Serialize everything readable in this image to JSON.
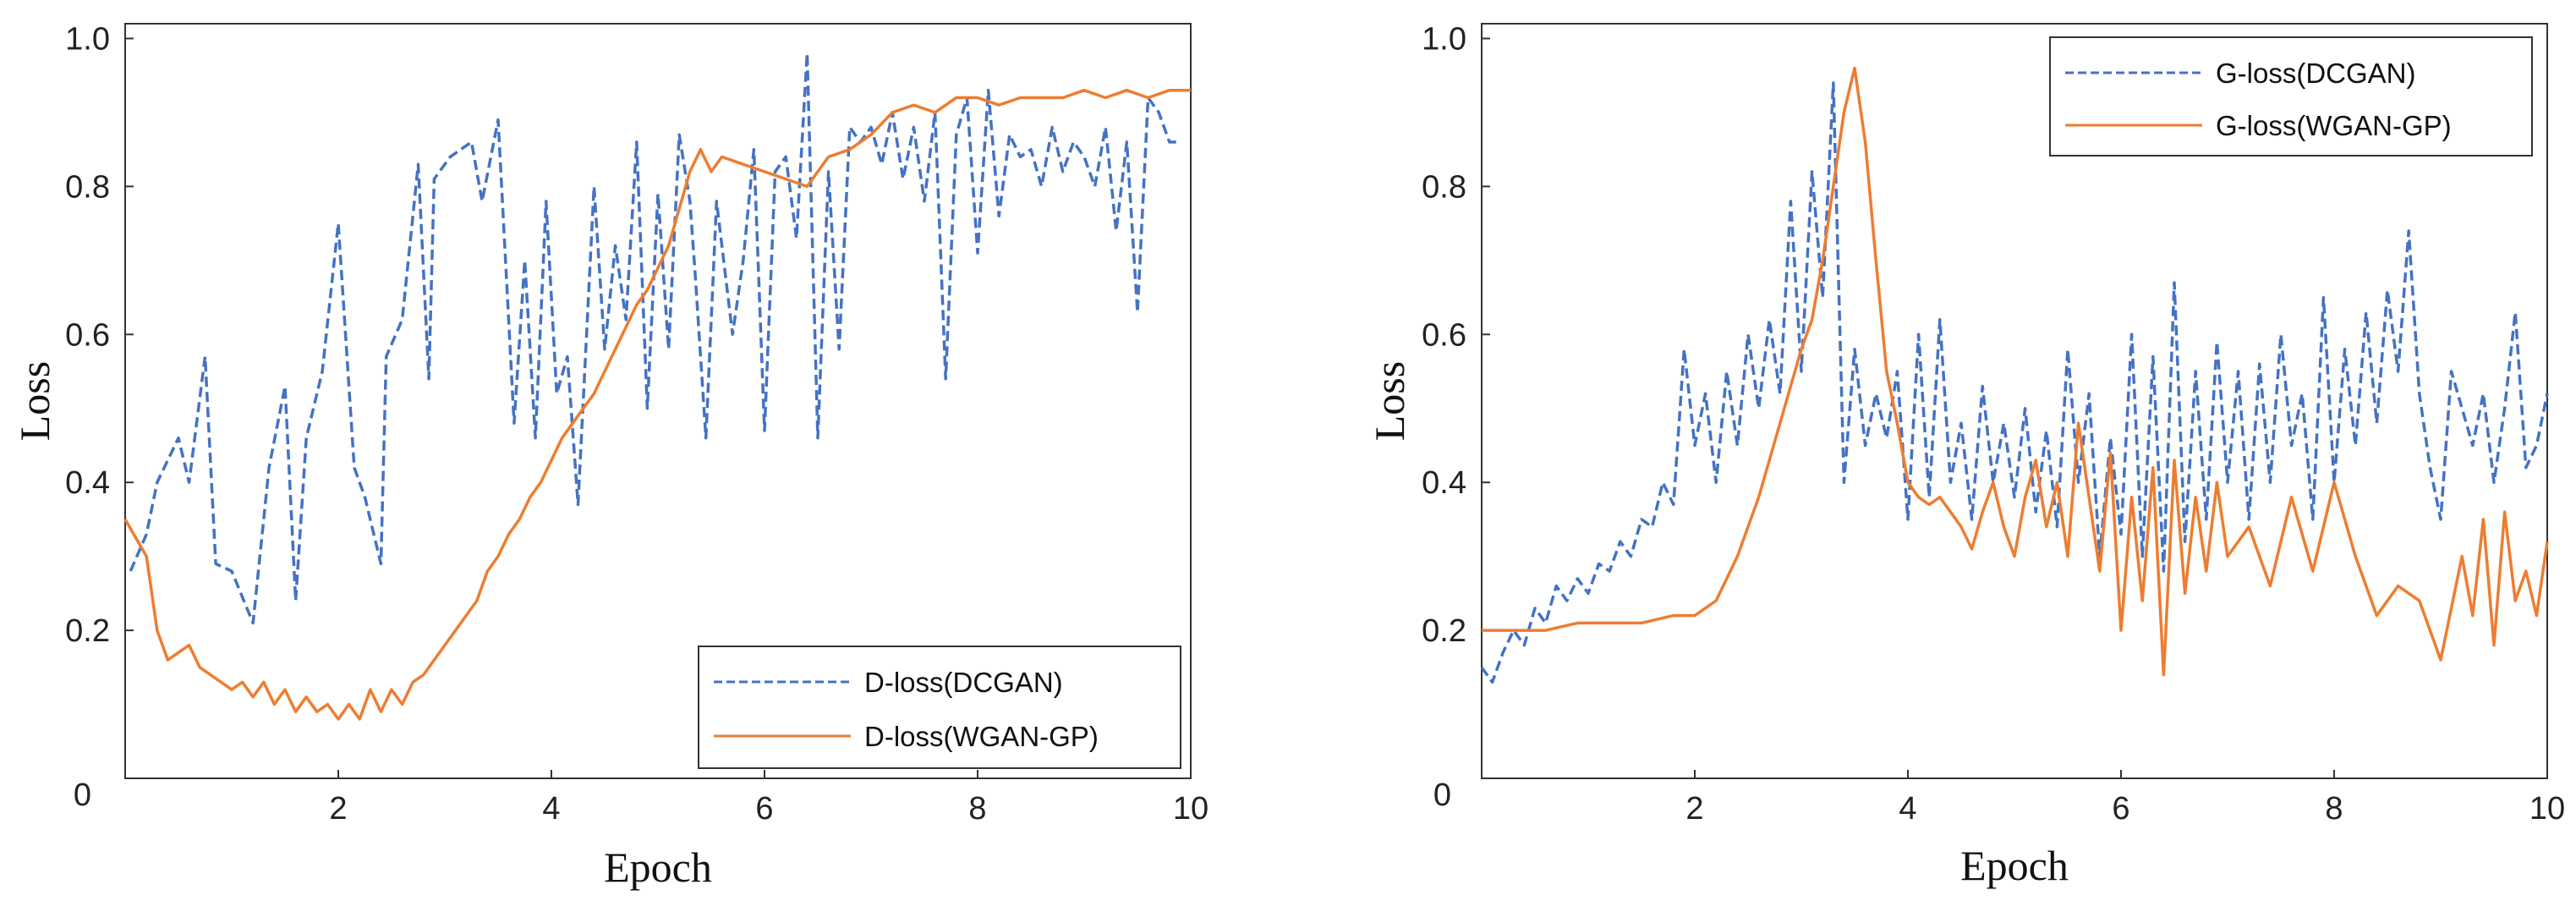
{
  "chart_data": [
    {
      "type": "line",
      "xlabel": "Epoch",
      "ylabel": "Loss",
      "xlim": [
        0,
        10
      ],
      "ylim": [
        0,
        1.02
      ],
      "xticks": [
        2,
        4,
        6,
        8,
        10
      ],
      "yticks": [
        0.2,
        0.4,
        0.6,
        0.8,
        1.0
      ],
      "xtick_labels": [
        "2",
        "4",
        "6",
        "8",
        "10"
      ],
      "ytick_labels": [
        "0.2",
        "0.4",
        "0.6",
        "0.8",
        "1.0"
      ],
      "origin_label": "0",
      "legend_position": "bottom-right",
      "series": [
        {
          "name": "D-loss(DCGAN)",
          "color": "#4472C4",
          "dash": true,
          "x": [
            0.05,
            0.2,
            0.3,
            0.5,
            0.6,
            0.75,
            0.85,
            1.0,
            1.2,
            1.35,
            1.5,
            1.6,
            1.7,
            1.85,
            2.0,
            2.15,
            2.25,
            2.4,
            2.45,
            2.6,
            2.75,
            2.85,
            2.9,
            3.05,
            3.25,
            3.35,
            3.5,
            3.65,
            3.75,
            3.85,
            3.95,
            4.05,
            4.15,
            4.25,
            4.4,
            4.5,
            4.6,
            4.7,
            4.8,
            4.9,
            5.0,
            5.1,
            5.2,
            5.3,
            5.35,
            5.45,
            5.55,
            5.7,
            5.8,
            5.9,
            6.0,
            6.1,
            6.2,
            6.3,
            6.4,
            6.5,
            6.6,
            6.7,
            6.8,
            6.9,
            7.0,
            7.1,
            7.2,
            7.3,
            7.4,
            7.5,
            7.6,
            7.7,
            7.8,
            7.9,
            8.0,
            8.1,
            8.2,
            8.3,
            8.4,
            8.5,
            8.6,
            8.7,
            8.8,
            8.9,
            9.0,
            9.1,
            9.2,
            9.3,
            9.4,
            9.5,
            9.6,
            9.7,
            9.8,
            9.9
          ],
          "y": [
            0.28,
            0.33,
            0.4,
            0.46,
            0.4,
            0.57,
            0.29,
            0.28,
            0.21,
            0.42,
            0.53,
            0.24,
            0.46,
            0.55,
            0.75,
            0.42,
            0.38,
            0.29,
            0.57,
            0.62,
            0.83,
            0.54,
            0.81,
            0.84,
            0.86,
            0.78,
            0.89,
            0.48,
            0.7,
            0.46,
            0.78,
            0.52,
            0.57,
            0.37,
            0.8,
            0.58,
            0.72,
            0.62,
            0.86,
            0.5,
            0.79,
            0.58,
            0.87,
            0.78,
            0.68,
            0.46,
            0.78,
            0.6,
            0.7,
            0.85,
            0.47,
            0.82,
            0.84,
            0.73,
            0.98,
            0.46,
            0.82,
            0.58,
            0.88,
            0.86,
            0.88,
            0.83,
            0.9,
            0.81,
            0.88,
            0.78,
            0.9,
            0.54,
            0.87,
            0.92,
            0.71,
            0.93,
            0.76,
            0.87,
            0.84,
            0.85,
            0.8,
            0.88,
            0.82,
            0.86,
            0.84,
            0.8,
            0.88,
            0.74,
            0.86,
            0.63,
            0.92,
            0.9,
            0.86,
            0.86
          ]
        },
        {
          "name": "D-loss(WGAN-GP)",
          "color": "#ED7D31",
          "dash": false,
          "x": [
            0.0,
            0.2,
            0.3,
            0.4,
            0.5,
            0.6,
            0.7,
            0.8,
            0.9,
            1.0,
            1.1,
            1.2,
            1.3,
            1.4,
            1.5,
            1.6,
            1.7,
            1.8,
            1.9,
            2.0,
            2.1,
            2.2,
            2.3,
            2.4,
            2.5,
            2.6,
            2.7,
            2.8,
            2.9,
            3.0,
            3.1,
            3.2,
            3.3,
            3.4,
            3.5,
            3.6,
            3.7,
            3.8,
            3.9,
            4.0,
            4.1,
            4.2,
            4.3,
            4.4,
            4.5,
            4.6,
            4.7,
            4.8,
            4.9,
            5.0,
            5.1,
            5.2,
            5.3,
            5.4,
            5.5,
            5.6,
            5.8,
            6.0,
            6.2,
            6.4,
            6.6,
            6.8,
            7.0,
            7.2,
            7.4,
            7.6,
            7.8,
            8.0,
            8.2,
            8.4,
            8.6,
            8.8,
            9.0,
            9.2,
            9.4,
            9.6,
            9.8,
            10.0
          ],
          "y": [
            0.35,
            0.3,
            0.2,
            0.16,
            0.17,
            0.18,
            0.15,
            0.14,
            0.13,
            0.12,
            0.13,
            0.11,
            0.13,
            0.1,
            0.12,
            0.09,
            0.11,
            0.09,
            0.1,
            0.08,
            0.1,
            0.08,
            0.12,
            0.09,
            0.12,
            0.1,
            0.13,
            0.14,
            0.16,
            0.18,
            0.2,
            0.22,
            0.24,
            0.28,
            0.3,
            0.33,
            0.35,
            0.38,
            0.4,
            0.43,
            0.46,
            0.48,
            0.5,
            0.52,
            0.55,
            0.58,
            0.61,
            0.64,
            0.66,
            0.69,
            0.72,
            0.77,
            0.82,
            0.85,
            0.82,
            0.84,
            0.83,
            0.82,
            0.81,
            0.8,
            0.84,
            0.85,
            0.87,
            0.9,
            0.91,
            0.9,
            0.92,
            0.92,
            0.91,
            0.92,
            0.92,
            0.92,
            0.93,
            0.92,
            0.93,
            0.92,
            0.93,
            0.93
          ]
        }
      ]
    },
    {
      "type": "line",
      "xlabel": "Epoch",
      "ylabel": "Loss",
      "xlim": [
        0,
        10
      ],
      "ylim": [
        0,
        1.02
      ],
      "xticks": [
        2,
        4,
        6,
        8,
        10
      ],
      "yticks": [
        0.2,
        0.4,
        0.6,
        0.8,
        1.0
      ],
      "xtick_labels": [
        "2",
        "4",
        "6",
        "8",
        "10"
      ],
      "ytick_labels": [
        "0.2",
        "0.4",
        "0.6",
        "0.8",
        "1.0"
      ],
      "origin_label": "0",
      "legend_position": "top-right",
      "series": [
        {
          "name": "G-loss(DCGAN)",
          "color": "#4472C4",
          "dash": true,
          "x": [
            0.0,
            0.1,
            0.2,
            0.3,
            0.4,
            0.5,
            0.6,
            0.7,
            0.8,
            0.9,
            1.0,
            1.1,
            1.2,
            1.3,
            1.4,
            1.5,
            1.6,
            1.7,
            1.8,
            1.9,
            2.0,
            2.1,
            2.2,
            2.3,
            2.4,
            2.5,
            2.6,
            2.7,
            2.8,
            2.9,
            3.0,
            3.1,
            3.2,
            3.3,
            3.4,
            3.5,
            3.6,
            3.7,
            3.8,
            3.9,
            4.0,
            4.1,
            4.2,
            4.3,
            4.4,
            4.5,
            4.6,
            4.7,
            4.8,
            4.9,
            5.0,
            5.1,
            5.2,
            5.3,
            5.4,
            5.5,
            5.6,
            5.7,
            5.8,
            5.9,
            6.0,
            6.1,
            6.2,
            6.3,
            6.4,
            6.5,
            6.6,
            6.7,
            6.8,
            6.9,
            7.0,
            7.1,
            7.2,
            7.3,
            7.4,
            7.5,
            7.6,
            7.7,
            7.8,
            7.9,
            8.0,
            8.1,
            8.2,
            8.3,
            8.4,
            8.5,
            8.6,
            8.7,
            8.8,
            8.9,
            9.0,
            9.1,
            9.2,
            9.3,
            9.4,
            9.5,
            9.6,
            9.7,
            9.8,
            9.9,
            10.0
          ],
          "y": [
            0.15,
            0.13,
            0.17,
            0.2,
            0.18,
            0.23,
            0.21,
            0.26,
            0.24,
            0.27,
            0.25,
            0.29,
            0.28,
            0.32,
            0.3,
            0.35,
            0.34,
            0.4,
            0.37,
            0.58,
            0.45,
            0.52,
            0.4,
            0.55,
            0.45,
            0.6,
            0.5,
            0.62,
            0.52,
            0.78,
            0.55,
            0.82,
            0.65,
            0.94,
            0.4,
            0.58,
            0.45,
            0.52,
            0.46,
            0.55,
            0.35,
            0.6,
            0.38,
            0.62,
            0.4,
            0.48,
            0.35,
            0.53,
            0.4,
            0.48,
            0.38,
            0.5,
            0.36,
            0.47,
            0.34,
            0.58,
            0.4,
            0.52,
            0.3,
            0.46,
            0.33,
            0.6,
            0.3,
            0.57,
            0.28,
            0.67,
            0.32,
            0.55,
            0.35,
            0.59,
            0.4,
            0.55,
            0.35,
            0.56,
            0.4,
            0.6,
            0.45,
            0.52,
            0.35,
            0.65,
            0.4,
            0.58,
            0.45,
            0.63,
            0.48,
            0.66,
            0.55,
            0.74,
            0.52,
            0.42,
            0.35,
            0.55,
            0.5,
            0.45,
            0.52,
            0.4,
            0.5,
            0.63,
            0.42,
            0.45,
            0.52
          ]
        },
        {
          "name": "G-loss(WGAN-GP)",
          "color": "#ED7D31",
          "dash": false,
          "x": [
            0.0,
            0.3,
            0.6,
            0.9,
            1.2,
            1.5,
            1.8,
            2.0,
            2.2,
            2.4,
            2.6,
            2.8,
            3.0,
            3.1,
            3.2,
            3.3,
            3.4,
            3.5,
            3.6,
            3.7,
            3.8,
            3.9,
            4.0,
            4.1,
            4.2,
            4.3,
            4.4,
            4.5,
            4.6,
            4.7,
            4.8,
            4.9,
            5.0,
            5.1,
            5.2,
            5.3,
            5.4,
            5.5,
            5.6,
            5.7,
            5.8,
            5.9,
            6.0,
            6.1,
            6.2,
            6.3,
            6.4,
            6.5,
            6.6,
            6.7,
            6.8,
            6.9,
            7.0,
            7.2,
            7.4,
            7.6,
            7.8,
            8.0,
            8.2,
            8.4,
            8.6,
            8.8,
            9.0,
            9.2,
            9.3,
            9.4,
            9.5,
            9.6,
            9.7,
            9.8,
            9.9,
            10.0
          ],
          "y": [
            0.2,
            0.2,
            0.2,
            0.21,
            0.21,
            0.21,
            0.22,
            0.22,
            0.24,
            0.3,
            0.38,
            0.48,
            0.58,
            0.62,
            0.7,
            0.8,
            0.9,
            0.96,
            0.86,
            0.7,
            0.55,
            0.48,
            0.4,
            0.38,
            0.37,
            0.38,
            0.36,
            0.34,
            0.31,
            0.36,
            0.4,
            0.34,
            0.3,
            0.38,
            0.43,
            0.34,
            0.4,
            0.3,
            0.48,
            0.38,
            0.28,
            0.44,
            0.2,
            0.38,
            0.24,
            0.42,
            0.14,
            0.43,
            0.25,
            0.38,
            0.28,
            0.4,
            0.3,
            0.34,
            0.26,
            0.38,
            0.28,
            0.4,
            0.3,
            0.22,
            0.26,
            0.24,
            0.16,
            0.3,
            0.22,
            0.35,
            0.18,
            0.36,
            0.24,
            0.28,
            0.22,
            0.32
          ]
        }
      ]
    }
  ]
}
